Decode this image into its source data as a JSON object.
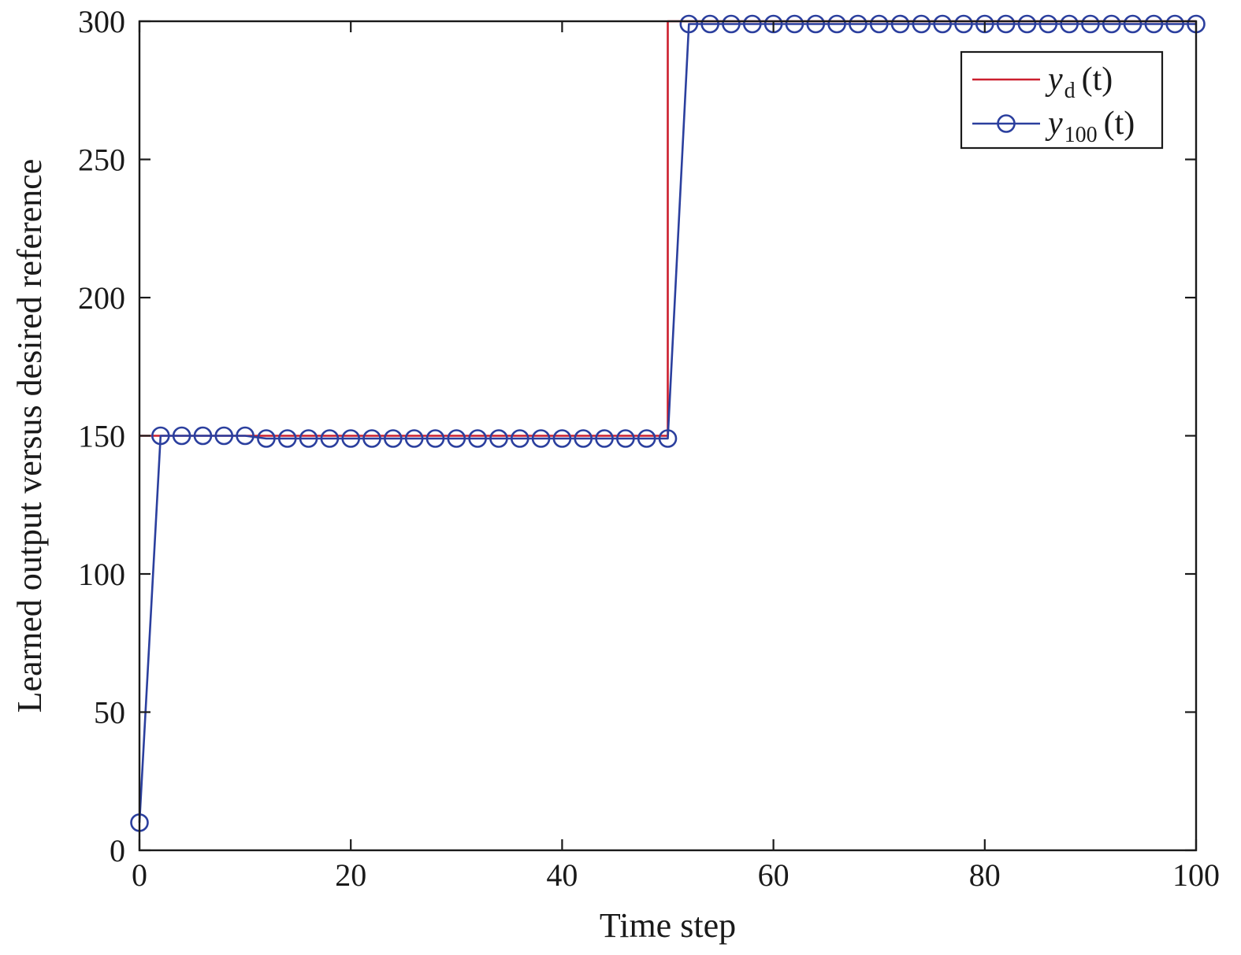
{
  "chart_data": {
    "type": "line",
    "xlabel": "Time step",
    "ylabel": "Learned output versus desired reference",
    "xlim": [
      0,
      100
    ],
    "ylim": [
      0,
      300
    ],
    "xticks": [
      0,
      20,
      40,
      60,
      80,
      100
    ],
    "yticks": [
      0,
      50,
      100,
      150,
      200,
      250,
      300
    ],
    "grid": false,
    "legend_position": "top-right",
    "series": [
      {
        "name": "y_d (t)",
        "legend_base": "y",
        "legend_sub": "d",
        "legend_paren": "(t)",
        "color": "#cc1f2e",
        "marker": "none",
        "x": [
          0,
          50,
          50,
          100
        ],
        "y": [
          150,
          150,
          300,
          300
        ]
      },
      {
        "name": "y_100 (t)",
        "legend_base": "y",
        "legend_sub": "100",
        "legend_paren": "(t)",
        "color": "#2b3f9e",
        "marker": "circle",
        "x": [
          0,
          2,
          4,
          6,
          8,
          10,
          12,
          14,
          16,
          18,
          20,
          22,
          24,
          26,
          28,
          30,
          32,
          34,
          36,
          38,
          40,
          42,
          44,
          46,
          48,
          50,
          52,
          54,
          56,
          58,
          60,
          62,
          64,
          66,
          68,
          70,
          72,
          74,
          76,
          78,
          80,
          82,
          84,
          86,
          88,
          90,
          92,
          94,
          96,
          98,
          100
        ],
        "y": [
          10,
          150,
          150,
          150,
          150,
          150,
          149,
          149,
          149,
          149,
          149,
          149,
          149,
          149,
          149,
          149,
          149,
          149,
          149,
          149,
          149,
          149,
          149,
          149,
          149,
          149,
          299,
          299,
          299,
          299,
          299,
          299,
          299,
          299,
          299,
          299,
          299,
          299,
          299,
          299,
          299,
          299,
          299,
          299,
          299,
          299,
          299,
          299,
          299,
          299,
          299
        ]
      }
    ]
  }
}
